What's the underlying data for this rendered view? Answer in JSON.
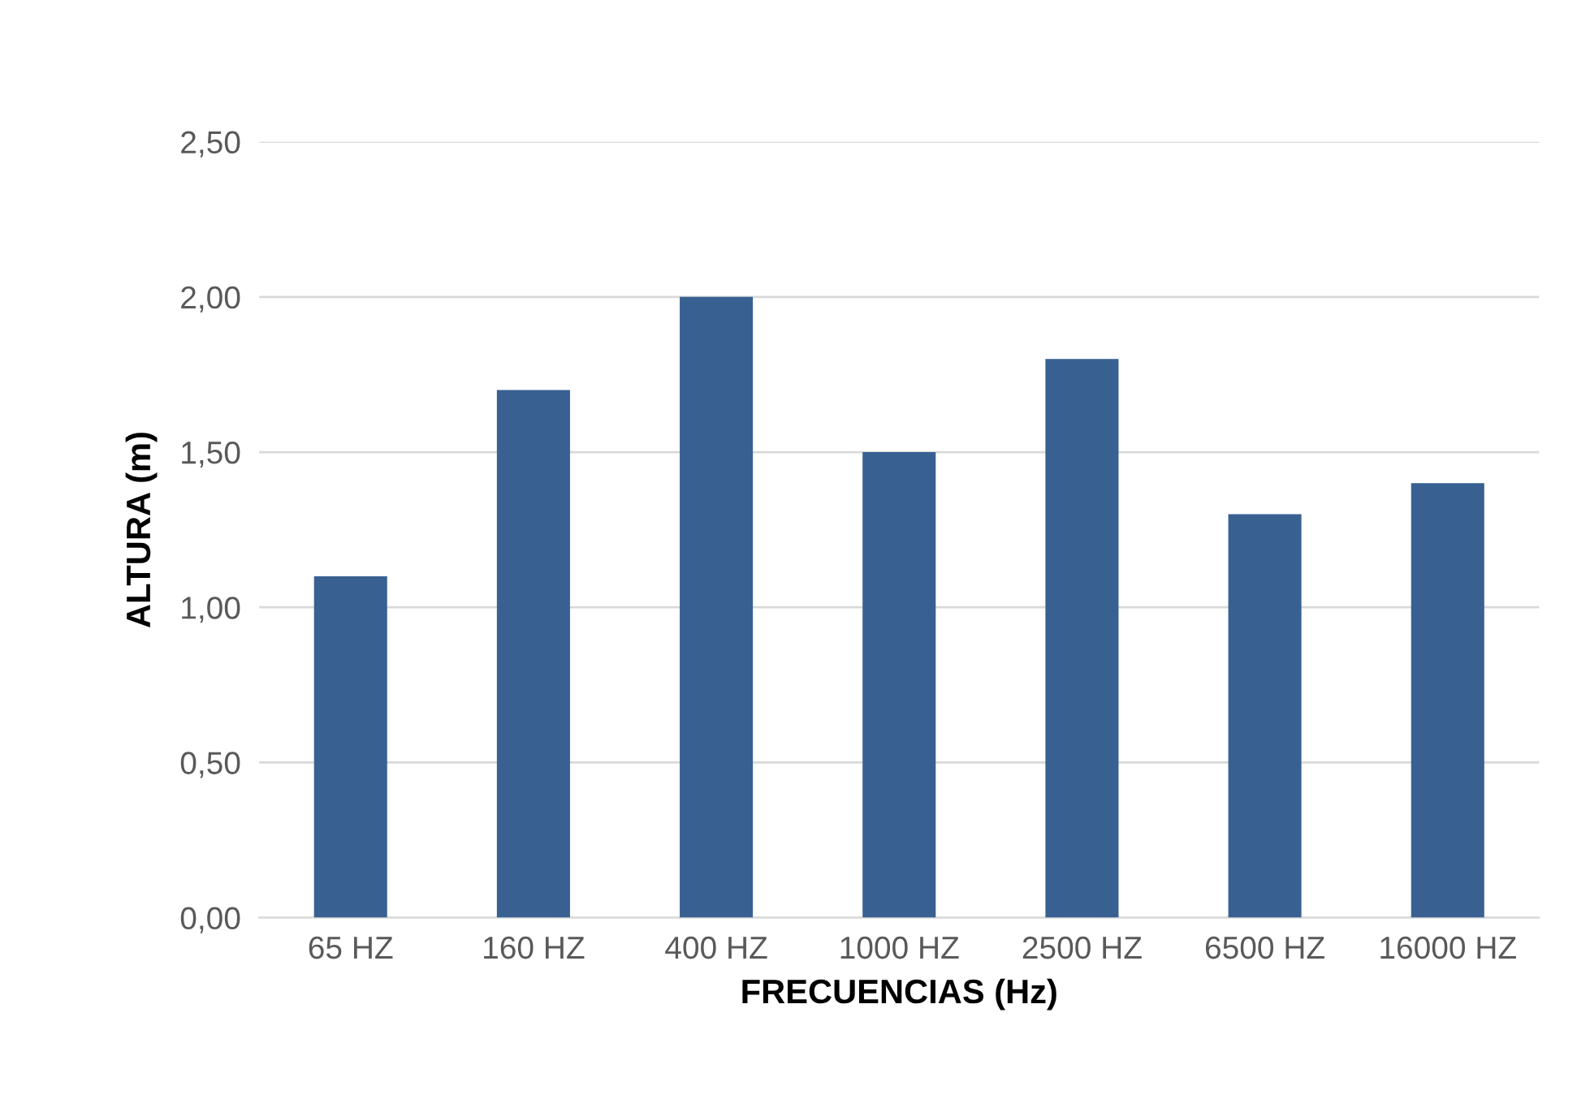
{
  "chart_data": {
    "type": "bar",
    "xlabel": "FRECUENCIAS (Hz)",
    "ylabel": "ALTURA (m)",
    "categories": [
      "65 HZ",
      "160 HZ",
      "400 HZ",
      "1000 HZ",
      "2500 HZ",
      "6500 HZ",
      "16000 HZ"
    ],
    "values": [
      1.1,
      1.7,
      2.0,
      1.5,
      1.8,
      1.3,
      1.4
    ],
    "color": "#386192",
    "ylim": [
      0,
      2.5
    ],
    "yticks": [
      {
        "value": 0,
        "label": "0,00"
      },
      {
        "value": 0.5,
        "label": "0,50"
      },
      {
        "value": 1.0,
        "label": "1,00"
      },
      {
        "value": 1.5,
        "label": "1,50"
      },
      {
        "value": 2.0,
        "label": "2,00"
      },
      {
        "value": 2.5,
        "label": "2,50"
      }
    ],
    "grid": "y",
    "legend": false
  }
}
